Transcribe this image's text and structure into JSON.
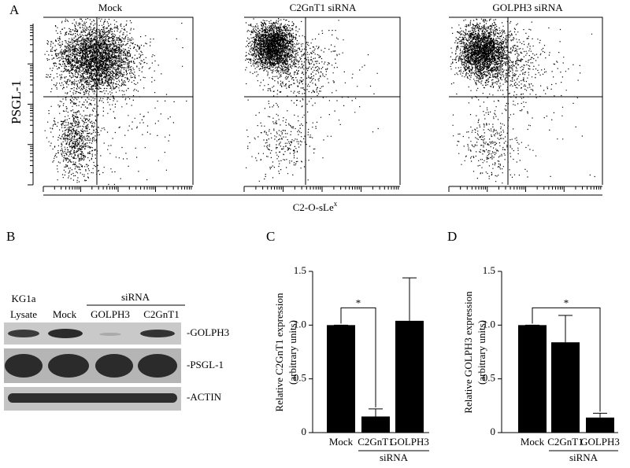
{
  "panel_labels": [
    "A",
    "B",
    "C",
    "D"
  ],
  "flow": {
    "titles": [
      "Mock",
      "C2GnT1 siRNA",
      "GOLPH3 siRNA"
    ],
    "y_label": "PSGL-1",
    "x_label": "C2-O-sLe",
    "x_label_sup": "x"
  },
  "blot": {
    "lanes_top": [
      "KG1a",
      "siRNA"
    ],
    "lanes": [
      "Lysate",
      "Mock",
      "GOLPH3",
      "C2GnT1"
    ],
    "rows": [
      "-GOLPH3",
      "-PSGL-1",
      "-ACTIN"
    ]
  },
  "chart_data": [
    {
      "type": "bar",
      "y_label": [
        "Relative C2GnT1 expression",
        "(arbitrary units)"
      ],
      "categories": [
        "Mock",
        "C2GnT1",
        "GOLPH3"
      ],
      "group_label": "siRNA",
      "values": [
        1.0,
        0.15,
        1.04
      ],
      "errors": [
        0,
        0.07,
        0.4
      ],
      "color": "#000000",
      "ylim": [
        0,
        1.5
      ],
      "yticks": [
        0,
        0.5,
        {
          "value": 1,
          "label": "1.0"
        },
        1.5
      ],
      "annotation": "*"
    },
    {
      "type": "bar",
      "y_label": [
        "Relative GOLPH3 expression",
        "(arbitrary units)"
      ],
      "categories": [
        "Mock",
        "C2GnT1",
        "GOLPH3"
      ],
      "group_label": "siRNA",
      "values": [
        1.0,
        0.84,
        0.14
      ],
      "errors": [
        0,
        0.25,
        0.04
      ],
      "color": "#000000",
      "ylim": [
        0,
        1.5
      ],
      "yticks": [
        0,
        0.5,
        {
          "value": 1,
          "label": "1.0"
        },
        1.5
      ],
      "annotation": "*"
    }
  ]
}
